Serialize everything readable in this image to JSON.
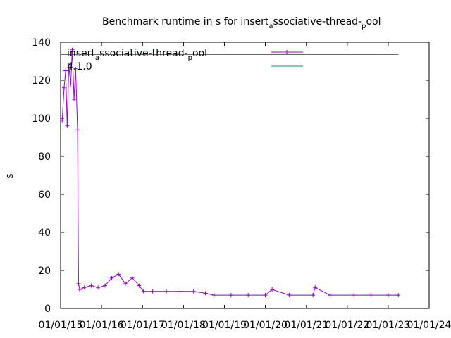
{
  "chart_data": {
    "type": "line",
    "title": {
      "prefix": "Benchmark runtime in s for insert",
      "sub1": "a",
      "mid": "ssociative-thread-",
      "sub2": "p",
      "suffix": "ool"
    },
    "ylabel": "s",
    "xlabel": "",
    "ylim": [
      0,
      140
    ],
    "y_ticks": [
      "0",
      "20",
      "40",
      "60",
      "80",
      "100",
      "120",
      "140"
    ],
    "x_ticks": [
      "01/01/15",
      "01/01/16",
      "01/01/17",
      "01/01/18",
      "01/01/19",
      "01/01/20",
      "01/01/21",
      "01/01/22",
      "01/01/23",
      "01/01/24"
    ],
    "xlim": [
      "2015-01-01",
      "2024-01-01"
    ],
    "legend_position": "top-left",
    "grid": false,
    "series": [
      {
        "name": {
          "prefix": "insert",
          "sub1": "a",
          "mid": "ssociative-thread-",
          "sub2": "p",
          "suffix": "ool"
        },
        "color": "#9400d3",
        "marker": "plus",
        "points": [
          [
            "2015-01-15",
            99
          ],
          [
            "2015-02-01",
            116
          ],
          [
            "2015-02-15",
            125
          ],
          [
            "2015-03-01",
            96
          ],
          [
            "2015-03-15",
            128
          ],
          [
            "2015-04-01",
            118
          ],
          [
            "2015-04-15",
            136
          ],
          [
            "2015-05-01",
            110
          ],
          [
            "2015-05-15",
            126
          ],
          [
            "2015-06-01",
            94
          ],
          [
            "2015-06-10",
            13
          ],
          [
            "2015-06-20",
            10
          ],
          [
            "2015-08-01",
            11
          ],
          [
            "2015-10-01",
            12
          ],
          [
            "2015-12-01",
            11
          ],
          [
            "2016-02-01",
            12
          ],
          [
            "2016-04-01",
            16
          ],
          [
            "2016-06-01",
            18
          ],
          [
            "2016-08-01",
            13
          ],
          [
            "2016-10-01",
            16
          ],
          [
            "2016-12-01",
            12
          ],
          [
            "2017-01-10",
            9
          ],
          [
            "2017-04-01",
            9
          ],
          [
            "2017-08-01",
            9
          ],
          [
            "2017-12-01",
            9
          ],
          [
            "2018-04-01",
            9
          ],
          [
            "2018-07-15",
            8
          ],
          [
            "2018-10-01",
            7
          ],
          [
            "2019-03-01",
            7
          ],
          [
            "2019-08-01",
            7
          ],
          [
            "2020-01-01",
            7
          ],
          [
            "2020-03-01",
            10
          ],
          [
            "2020-08-01",
            7
          ],
          [
            "2021-03-01",
            7
          ],
          [
            "2021-03-20",
            11
          ],
          [
            "2021-08-01",
            7
          ],
          [
            "2022-03-01",
            7
          ],
          [
            "2022-08-01",
            7
          ],
          [
            "2023-01-01",
            7
          ],
          [
            "2023-04-01",
            7
          ]
        ]
      },
      {
        "name": {
          "prefix": "4.1.0"
        },
        "color": "#009e73",
        "marker": "none",
        "points": [
          [
            "2015-01-01",
            133.5
          ],
          [
            "2023-04-01",
            133.5
          ]
        ]
      }
    ]
  }
}
